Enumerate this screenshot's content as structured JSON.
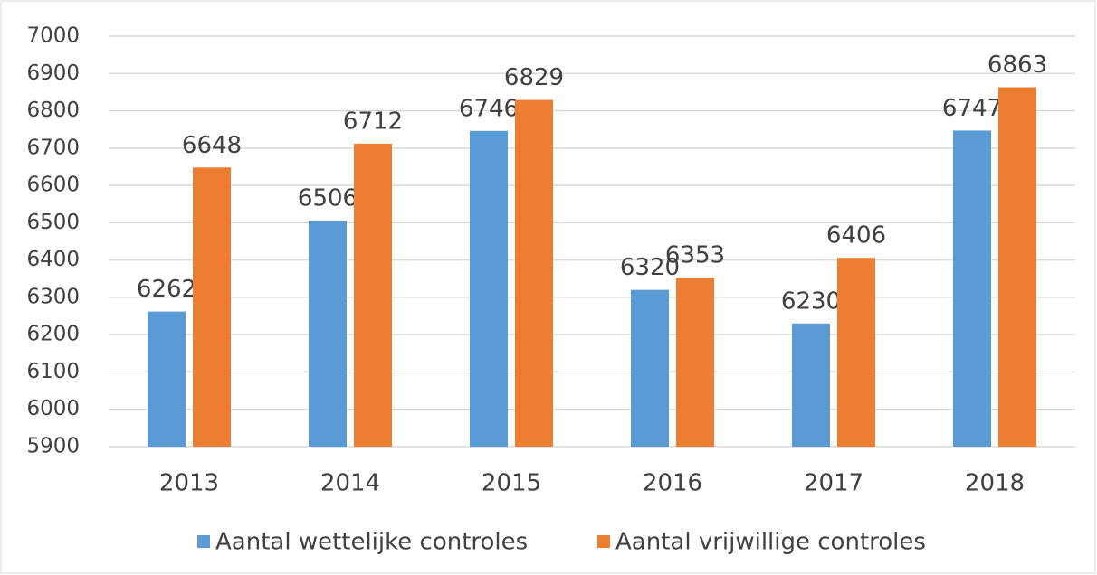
{
  "chart_data": {
    "type": "bar",
    "categories": [
      "2013",
      "2014",
      "2015",
      "2016",
      "2017",
      "2018"
    ],
    "series": [
      {
        "name": "Aantal wettelijke controles",
        "color": "#5b9bd5",
        "values": [
          6262,
          6506,
          6746,
          6320,
          6230,
          6747
        ]
      },
      {
        "name": "Aantal vrijwillige controles",
        "color": "#ed7d31",
        "values": [
          6648,
          6712,
          6829,
          6353,
          6406,
          6863
        ]
      }
    ],
    "ylim": [
      5900,
      7000
    ],
    "yticks": [
      5900,
      6000,
      6100,
      6200,
      6300,
      6400,
      6500,
      6600,
      6700,
      6800,
      6900,
      7000
    ],
    "grid": true,
    "legend": "bottom"
  }
}
